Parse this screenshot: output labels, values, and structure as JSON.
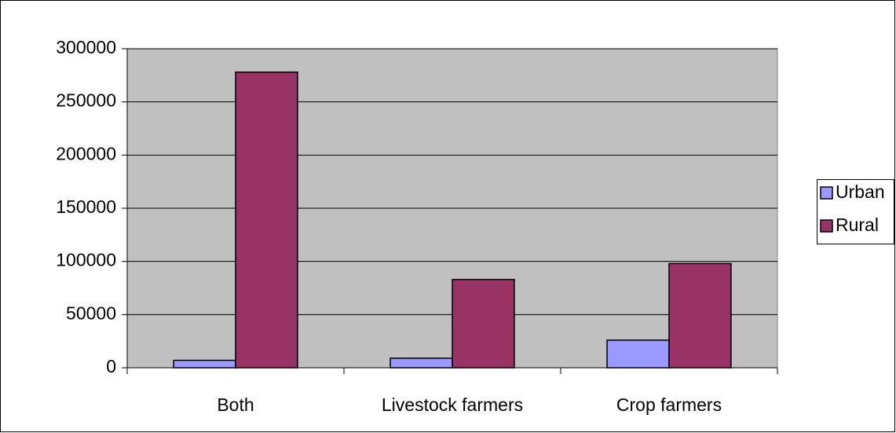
{
  "chart_data": {
    "type": "bar",
    "categories": [
      "Both",
      "Livestock farmers",
      "Crop farmers"
    ],
    "series": [
      {
        "name": "Urban",
        "color": "#9999ff",
        "values": [
          7000,
          9000,
          26000
        ]
      },
      {
        "name": "Rural",
        "color": "#993366",
        "values": [
          278000,
          83000,
          98000
        ]
      }
    ],
    "ylim": [
      0,
      300000
    ],
    "yticks": [
      0,
      50000,
      100000,
      150000,
      200000,
      250000,
      300000
    ],
    "grid": true,
    "legend": "right"
  }
}
